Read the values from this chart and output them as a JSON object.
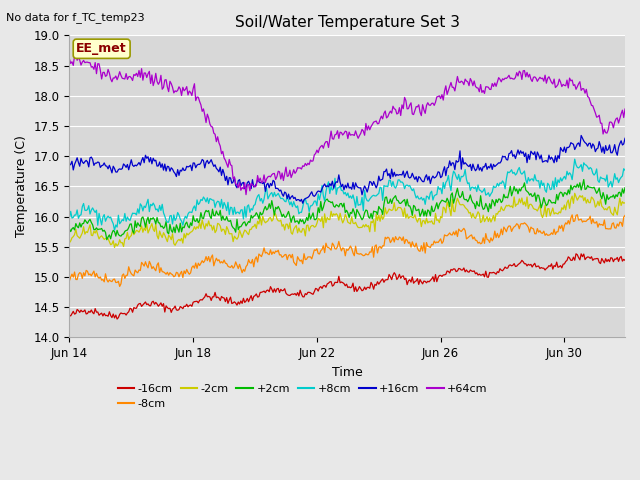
{
  "title": "Soil/Water Temperature Set 3",
  "subtitle": "No data for f_TC_temp23",
  "xlabel": "Time",
  "ylabel": "Temperature (C)",
  "ylim": [
    14.0,
    19.0
  ],
  "yticks": [
    14.0,
    14.5,
    15.0,
    15.5,
    16.0,
    16.5,
    17.0,
    17.5,
    18.0,
    18.5,
    19.0
  ],
  "fig_bg": "#e8e8e8",
  "plot_bg": "#d8d8d8",
  "series": [
    {
      "label": "-16cm",
      "color": "#cc0000",
      "base_start": 14.35,
      "base_end": 15.35,
      "amp": 0.07,
      "period": 48
    },
    {
      "label": "-8cm",
      "color": "#ff8800",
      "base_start": 14.95,
      "base_end": 15.95,
      "amp": 0.1,
      "period": 48
    },
    {
      "label": "-2cm",
      "color": "#cccc00",
      "base_start": 15.6,
      "base_end": 16.25,
      "amp": 0.12,
      "period": 48
    },
    {
      "label": "+2cm",
      "color": "#00bb00",
      "base_start": 15.75,
      "base_end": 16.45,
      "amp": 0.12,
      "period": 48
    },
    {
      "label": "+8cm",
      "color": "#00cccc",
      "base_start": 15.95,
      "base_end": 16.75,
      "amp": 0.14,
      "period": 48
    },
    {
      "label": "+16cm",
      "color": "#0000cc",
      "base_start": 16.8,
      "base_end": 17.25,
      "amp": 0.16,
      "period": 48
    },
    {
      "label": "+64cm",
      "color": "#aa00cc",
      "base_start": 18.0,
      "base_end": 17.75,
      "amp": 0.12,
      "period": 48
    }
  ],
  "n_points": 432,
  "xtick_labels": [
    "Jun 14",
    "Jun 18",
    "Jun 22",
    "Jun 26",
    "Jun 30"
  ],
  "xtick_positions": [
    0,
    96,
    192,
    288,
    384
  ],
  "ee_met_label": "EE_met",
  "grid_color": "#ffffff",
  "linewidth": 0.9
}
